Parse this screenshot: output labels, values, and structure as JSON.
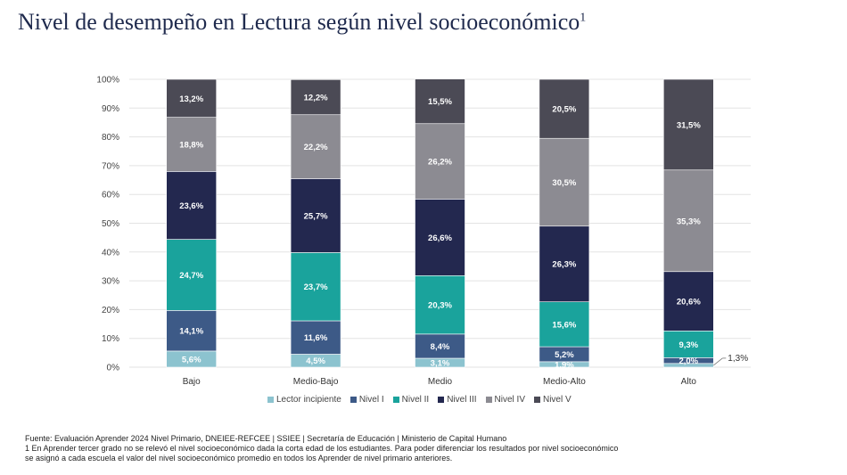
{
  "title": {
    "text": "Nivel de desempeño en Lectura según nivel socioeconómico",
    "superscript": "1"
  },
  "chart_data": {
    "type": "bar",
    "stacked": true,
    "categories": [
      "Bajo",
      "Medio-Bajo",
      "Medio",
      "Medio-Alto",
      "Alto"
    ],
    "ylim": [
      0,
      100
    ],
    "yticks": [
      "0%",
      "10%",
      "20%",
      "30%",
      "40%",
      "50%",
      "60%",
      "70%",
      "80%",
      "90%",
      "100%"
    ],
    "series": [
      {
        "name": "Lector incipiente",
        "color": "#8cc3cf",
        "values": [
          5.6,
          4.5,
          3.1,
          1.9,
          1.3
        ],
        "labels": [
          "5,6%",
          "4,5%",
          "3,1%",
          "1,9%",
          "1,3%"
        ]
      },
      {
        "name": "Nivel I",
        "color": "#3d5a87",
        "values": [
          14.1,
          11.6,
          8.4,
          5.2,
          2.0
        ],
        "labels": [
          "14,1%",
          "11,6%",
          "8,4%",
          "5,2%",
          "2,0%"
        ]
      },
      {
        "name": "Nivel II",
        "color": "#1aa39c",
        "values": [
          24.7,
          23.7,
          20.3,
          15.6,
          9.3
        ],
        "labels": [
          "24,7%",
          "23,7%",
          "20,3%",
          "15,6%",
          "9,3%"
        ]
      },
      {
        "name": "Nivel III",
        "color": "#23284f",
        "values": [
          23.6,
          25.7,
          26.6,
          26.3,
          20.6
        ],
        "labels": [
          "23,6%",
          "25,7%",
          "26,6%",
          "26,3%",
          "20,6%"
        ]
      },
      {
        "name": "Nivel IV",
        "color": "#8c8b92",
        "values": [
          18.8,
          22.2,
          26.2,
          30.5,
          35.3
        ],
        "labels": [
          "18,8%",
          "22,2%",
          "26,2%",
          "30,5%",
          "35,3%"
        ]
      },
      {
        "name": "Nivel V",
        "color": "#4b4a55",
        "values": [
          13.2,
          12.2,
          15.5,
          20.5,
          31.5
        ],
        "labels": [
          "13,2%",
          "12,2%",
          "15,5%",
          "20,5%",
          "31,5%"
        ]
      }
    ],
    "external_label": {
      "text": "1,3%",
      "category": "Alto",
      "series": "Lector incipiente"
    }
  },
  "legend": {
    "items": [
      {
        "label": "Lector incipiente",
        "color": "#8cc3cf"
      },
      {
        "label": "Nivel I",
        "color": "#3d5a87"
      },
      {
        "label": "Nivel II",
        "color": "#1aa39c"
      },
      {
        "label": "Nivel III",
        "color": "#23284f"
      },
      {
        "label": "Nivel IV",
        "color": "#8c8b92"
      },
      {
        "label": "Nivel V",
        "color": "#4b4a55"
      }
    ]
  },
  "footer": {
    "source": "Fuente: Evaluación Aprender 2024 Nivel Primario, DNEIEE-REFCEE | SSIEE | Secretaría de Educación | Ministerio de Capital Humano",
    "note_line1": "1 En Aprender tercer grado no se relevó el nivel socioeconómico dada la corta edad de los estudiantes. Para poder diferenciar los resultados por nivel socioeconómico",
    "note_line2": "se asignó a cada escuela el valor del nivel socioeconómico promedio en todos los Aprender de nivel primario anteriores."
  }
}
